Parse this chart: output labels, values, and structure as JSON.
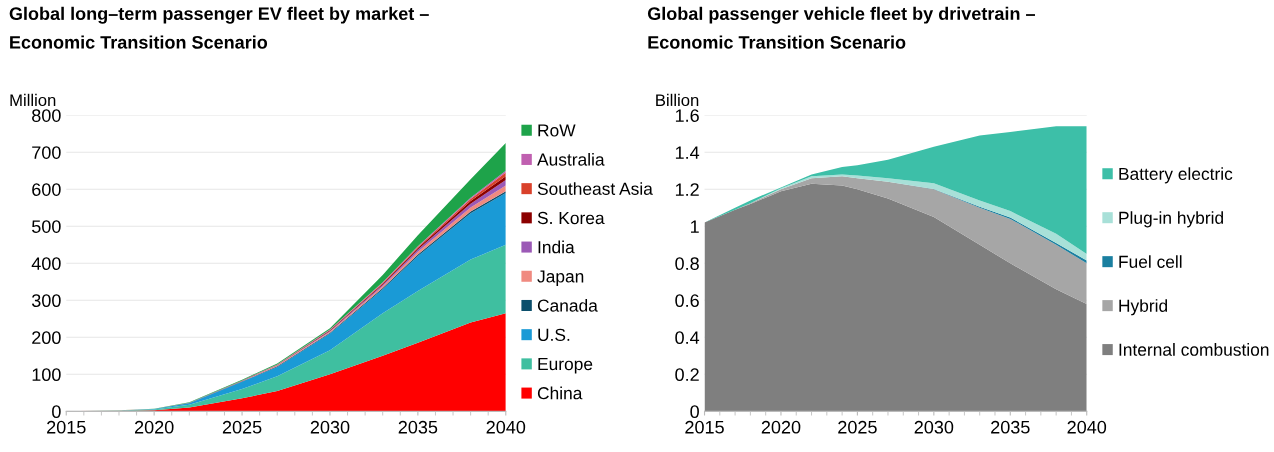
{
  "chart_data": [
    {
      "type": "area",
      "stacked": true,
      "title": "Global long–term passenger EV fleet by market – Economic Transition Scenario",
      "ylabel": "Million",
      "x": [
        2015,
        2018,
        2020,
        2022,
        2025,
        2027,
        2030,
        2033,
        2035,
        2038,
        2040
      ],
      "xlim": [
        2015,
        2040
      ],
      "xticks": [
        2015,
        2020,
        2025,
        2030,
        2035,
        2040
      ],
      "ylim": [
        0,
        800
      ],
      "yticks": [
        0,
        100,
        200,
        300,
        400,
        500,
        600,
        700,
        800
      ],
      "grid": "y",
      "legend": "right",
      "series": [
        {
          "name": "China",
          "color": "#ff0000",
          "values": [
            0.1,
            1,
            3,
            10,
            35,
            55,
            100,
            150,
            185,
            240,
            265
          ]
        },
        {
          "name": "Europe",
          "color": "#3fbfa0",
          "values": [
            0.1,
            1,
            2,
            8,
            25,
            40,
            65,
            115,
            140,
            170,
            185
          ]
        },
        {
          "name": "U.S.",
          "color": "#1a9ad6",
          "values": [
            0.1,
            0.5,
            1,
            4,
            20,
            25,
            45,
            65,
            95,
            125,
            140
          ]
        },
        {
          "name": "Canada",
          "color": "#0b4f6c",
          "values": [
            0,
            0,
            0.1,
            0.3,
            1,
            1.5,
            2,
            3,
            4,
            5,
            5
          ]
        },
        {
          "name": "Japan",
          "color": "#f08a80",
          "values": [
            0,
            0.1,
            0.2,
            0.5,
            1,
            2,
            3,
            5,
            7,
            11,
            15
          ]
        },
        {
          "name": "India",
          "color": "#9b59b6",
          "values": [
            0,
            0,
            0,
            0.1,
            0.5,
            1,
            2,
            4,
            6,
            10,
            15
          ]
        },
        {
          "name": "S. Korea",
          "color": "#8b0000",
          "values": [
            0,
            0,
            0.1,
            0.2,
            0.5,
            1,
            2,
            3,
            4,
            7,
            10
          ]
        },
        {
          "name": "Southeast Asia",
          "color": "#d9412b",
          "values": [
            0,
            0,
            0,
            0.1,
            0.3,
            0.5,
            1,
            2,
            3,
            6,
            10
          ]
        },
        {
          "name": "Australia",
          "color": "#c060b0",
          "values": [
            0,
            0,
            0,
            0.1,
            0.2,
            0.4,
            0.8,
            1.5,
            2,
            3,
            5
          ]
        },
        {
          "name": "RoW",
          "color": "#1ea34a",
          "values": [
            0,
            0.2,
            0.5,
            1,
            2,
            3,
            4,
            20,
            30,
            50,
            75
          ]
        }
      ]
    },
    {
      "type": "area",
      "stacked": true,
      "title": "Global passenger vehicle fleet by drivetrain – Economic Transition Scenario",
      "ylabel": "Billion",
      "x": [
        2015,
        2017,
        2018,
        2020,
        2022,
        2024,
        2025,
        2027,
        2030,
        2033,
        2035,
        2038,
        2040
      ],
      "xlim": [
        2015,
        2040
      ],
      "xticks": [
        2015,
        2020,
        2025,
        2030,
        2035,
        2040
      ],
      "ylim": [
        0,
        1.6
      ],
      "yticks": [
        0,
        0.2,
        0.4,
        0.6,
        0.8,
        1,
        1.2,
        1.4,
        1.6
      ],
      "grid": "y",
      "legend": "right",
      "series": [
        {
          "name": "Internal combustion",
          "color": "#7f7f7f",
          "values": [
            1.02,
            1.09,
            1.12,
            1.19,
            1.23,
            1.22,
            1.2,
            1.15,
            1.05,
            0.9,
            0.8,
            0.66,
            0.58
          ]
        },
        {
          "name": "Hybrid",
          "color": "#a6a6a6",
          "values": [
            0,
            0,
            0.005,
            0.01,
            0.03,
            0.05,
            0.06,
            0.09,
            0.15,
            0.2,
            0.24,
            0.24,
            0.22
          ]
        },
        {
          "name": "Fuel cell",
          "color": "#1a7fa0",
          "values": [
            0,
            0,
            0,
            0,
            0,
            0,
            0,
            0,
            0.002,
            0.005,
            0.007,
            0.01,
            0.015
          ]
        },
        {
          "name": "Plug-in hybrid",
          "color": "#a8e0d8",
          "values": [
            0,
            0,
            0,
            0.005,
            0.01,
            0.01,
            0.015,
            0.02,
            0.03,
            0.035,
            0.035,
            0.05,
            0.035
          ]
        },
        {
          "name": "Battery electric",
          "color": "#3dbfa8",
          "values": [
            0,
            0.01,
            0.015,
            0.005,
            0.01,
            0.04,
            0.055,
            0.1,
            0.198,
            0.35,
            0.428,
            0.58,
            0.69
          ]
        }
      ]
    }
  ]
}
